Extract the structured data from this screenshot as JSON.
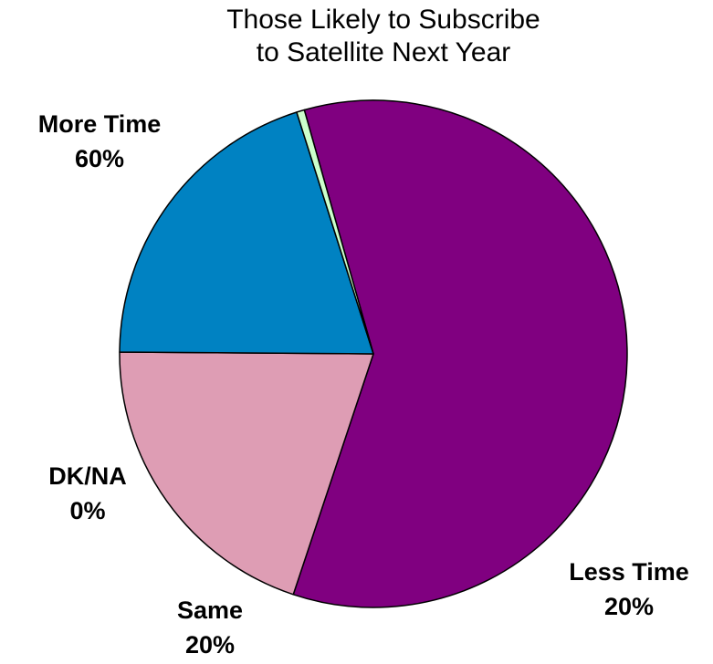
{
  "chart_data": {
    "type": "pie",
    "title_lines": [
      "Those Likely to Subscribe",
      "to Satellite Next Year"
    ],
    "start_angle_deg": 344.2,
    "slices": [
      {
        "label": "More Time",
        "display": "60%",
        "value": 59.5,
        "color": "#800080"
      },
      {
        "label": "Less Time",
        "display": "20%",
        "value": 20.0,
        "color": "#de9db4"
      },
      {
        "label": "Same",
        "display": "20%",
        "value": 20.0,
        "color": "#0082c2"
      },
      {
        "label": "DK/NA",
        "display": "0%",
        "value": 0.5,
        "color": "#ccffcc"
      }
    ],
    "legend": "none"
  }
}
